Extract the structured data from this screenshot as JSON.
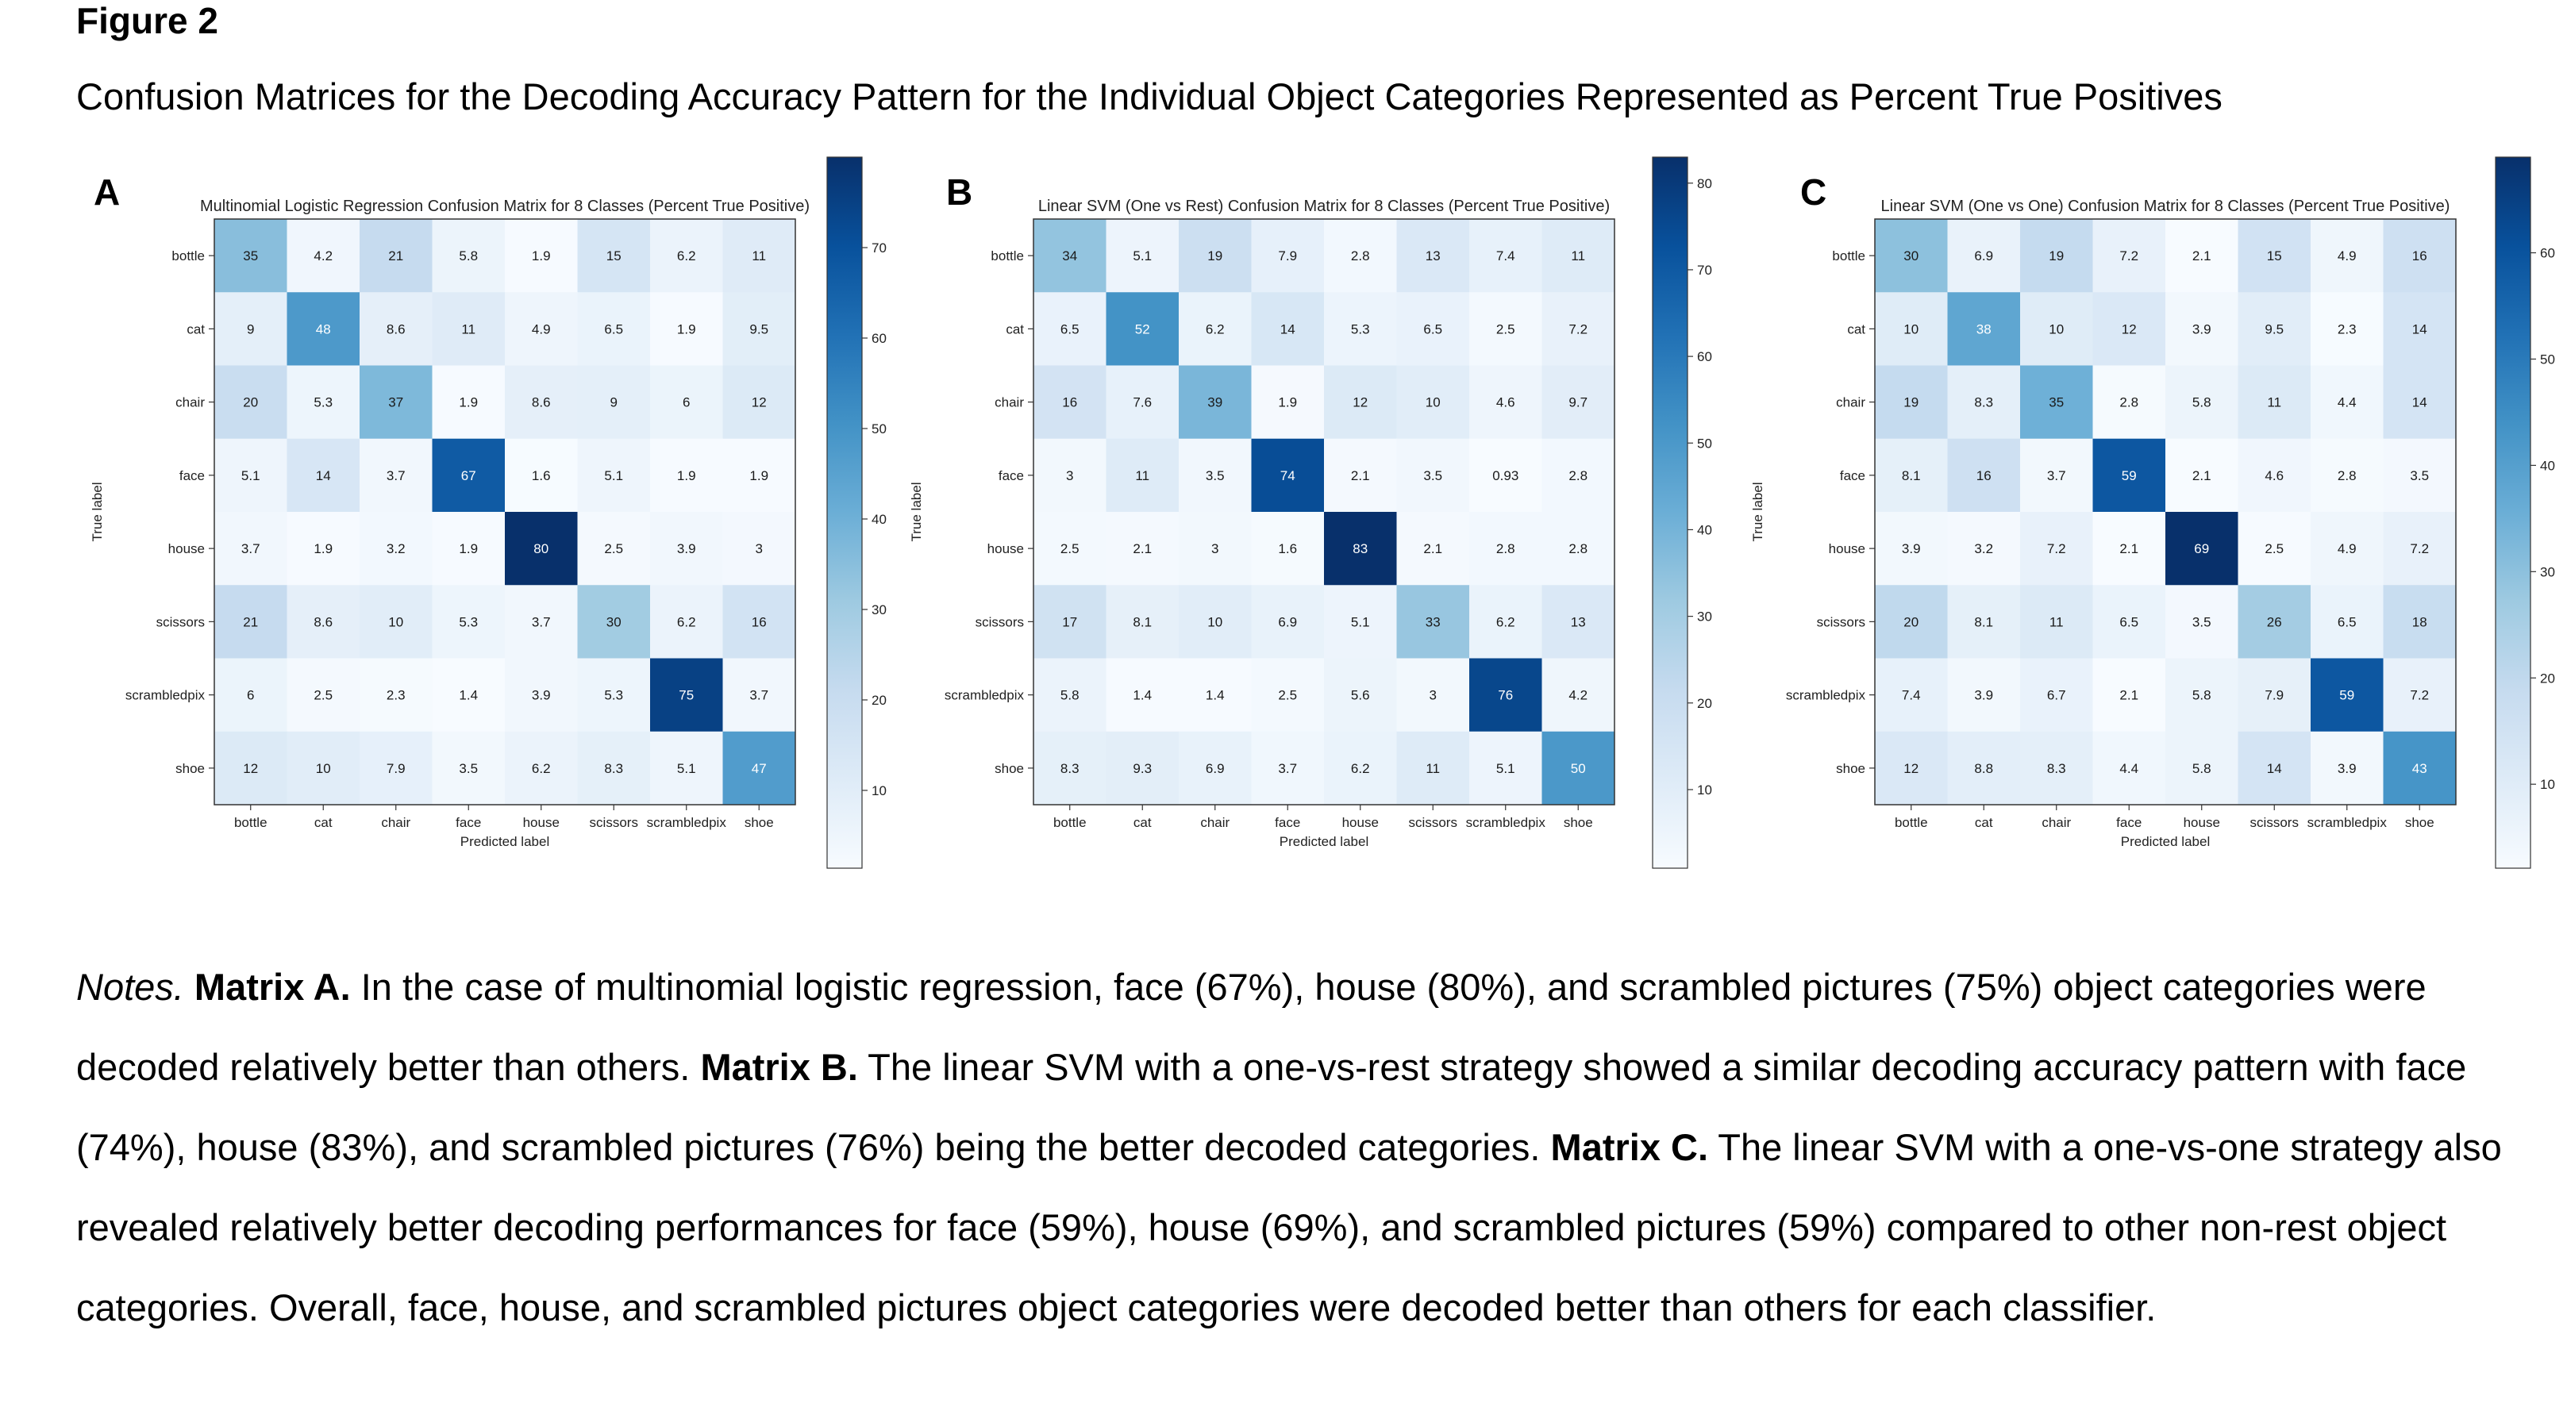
{
  "figure": {
    "label": "Figure 2",
    "title": "Confusion Matrices for the Decoding Accuracy Pattern for the Individual Object Categories Represented as Percent True Positives"
  },
  "notes": {
    "lead": "Notes.",
    "a_label": "Matrix A.",
    "a_text": " In the case of multinomial logistic regression, face (67%), house (80%), and scrambled pictures (75%) object categories were decoded relatively better than others.",
    "b_label": " Matrix B.",
    "b_text": " The linear SVM with a one-vs-rest strategy showed a similar decoding accuracy pattern with face (74%), house (83%), and scrambled pictures (76%) being the better decoded categories.",
    "c_label": " Matrix C.",
    "c_text": " The linear SVM with a one-vs-one strategy also revealed relatively better decoding performances for face (59%), house (69%), and scrambled pictures (59%) compared to other non-rest object categories. Overall, face, house, and scrambled pictures object categories were decoded better than others for each classifier."
  },
  "chart_data": [
    {
      "type": "heatmap",
      "panel": "A",
      "title": "Multinomial Logistic Regression Confusion Matrix for 8 Classes (Percent True Positive)",
      "xlabel": "Predicted label",
      "ylabel": "True label",
      "categories": [
        "bottle",
        "cat",
        "chair",
        "face",
        "house",
        "scissors",
        "scrambledpix",
        "shoe"
      ],
      "labels": [
        [
          "35",
          "4.2",
          "21",
          "5.8",
          "1.9",
          "15",
          "6.2",
          "11"
        ],
        [
          "9",
          "48",
          "8.6",
          "11",
          "4.9",
          "6.5",
          "1.9",
          "9.5"
        ],
        [
          "20",
          "5.3",
          "37",
          "1.9",
          "8.6",
          "9",
          "6",
          "12"
        ],
        [
          "5.1",
          "14",
          "3.7",
          "67",
          "1.6",
          "5.1",
          "1.9",
          "1.9"
        ],
        [
          "3.7",
          "1.9",
          "3.2",
          "1.9",
          "80",
          "2.5",
          "3.9",
          "3"
        ],
        [
          "21",
          "8.6",
          "10",
          "5.3",
          "3.7",
          "30",
          "6.2",
          "16"
        ],
        [
          "6",
          "2.5",
          "2.3",
          "1.4",
          "3.9",
          "5.3",
          "75",
          "3.7"
        ],
        [
          "12",
          "10",
          "7.9",
          "3.5",
          "6.2",
          "8.3",
          "5.1",
          "47"
        ]
      ],
      "colorbar": {
        "min": 1.4,
        "max": 80,
        "ticks": [
          10,
          20,
          30,
          40,
          50,
          60,
          70
        ]
      }
    },
    {
      "type": "heatmap",
      "panel": "B",
      "title": "Linear SVM (One vs Rest) Confusion Matrix for 8 Classes (Percent True Positive)",
      "xlabel": "Predicted label",
      "ylabel": "True label",
      "categories": [
        "bottle",
        "cat",
        "chair",
        "face",
        "house",
        "scissors",
        "scrambledpix",
        "shoe"
      ],
      "labels": [
        [
          "34",
          "5.1",
          "19",
          "7.9",
          "2.8",
          "13",
          "7.4",
          "11"
        ],
        [
          "6.5",
          "52",
          "6.2",
          "14",
          "5.3",
          "6.5",
          "2.5",
          "7.2"
        ],
        [
          "16",
          "7.6",
          "39",
          "1.9",
          "12",
          "10",
          "4.6",
          "9.7"
        ],
        [
          "3",
          "11",
          "3.5",
          "74",
          "2.1",
          "3.5",
          "0.93",
          "2.8"
        ],
        [
          "2.5",
          "2.1",
          "3",
          "1.6",
          "83",
          "2.1",
          "2.8",
          "2.8"
        ],
        [
          "17",
          "8.1",
          "10",
          "6.9",
          "5.1",
          "33",
          "6.2",
          "13"
        ],
        [
          "5.8",
          "1.4",
          "1.4",
          "2.5",
          "5.6",
          "3",
          "76",
          "4.2"
        ],
        [
          "8.3",
          "9.3",
          "6.9",
          "3.7",
          "6.2",
          "11",
          "5.1",
          "50"
        ]
      ],
      "colorbar": {
        "min": 0.93,
        "max": 83,
        "ticks": [
          10,
          20,
          30,
          40,
          50,
          60,
          70,
          80
        ]
      }
    },
    {
      "type": "heatmap",
      "panel": "C",
      "title": "Linear SVM (One vs One) Confusion Matrix for 8 Classes (Percent True Positive)",
      "xlabel": "Predicted label",
      "ylabel": "True label",
      "categories": [
        "bottle",
        "cat",
        "chair",
        "face",
        "house",
        "scissors",
        "scrambledpix",
        "shoe"
      ],
      "labels": [
        [
          "30",
          "6.9",
          "19",
          "7.2",
          "2.1",
          "15",
          "4.9",
          "16"
        ],
        [
          "10",
          "38",
          "10",
          "12",
          "3.9",
          "9.5",
          "2.3",
          "14"
        ],
        [
          "19",
          "8.3",
          "35",
          "2.8",
          "5.8",
          "11",
          "4.4",
          "14"
        ],
        [
          "8.1",
          "16",
          "3.7",
          "59",
          "2.1",
          "4.6",
          "2.8",
          "3.5"
        ],
        [
          "3.9",
          "3.2",
          "7.2",
          "2.1",
          "69",
          "2.5",
          "4.9",
          "7.2"
        ],
        [
          "20",
          "8.1",
          "11",
          "6.5",
          "3.5",
          "26",
          "6.5",
          "18"
        ],
        [
          "7.4",
          "3.9",
          "6.7",
          "2.1",
          "5.8",
          "7.9",
          "59",
          "7.2"
        ],
        [
          "12",
          "8.8",
          "8.3",
          "4.4",
          "5.8",
          "14",
          "3.9",
          "43"
        ]
      ],
      "colorbar": {
        "min": 2.1,
        "max": 69,
        "ticks": [
          10,
          20,
          30,
          40,
          50,
          60
        ]
      }
    }
  ]
}
